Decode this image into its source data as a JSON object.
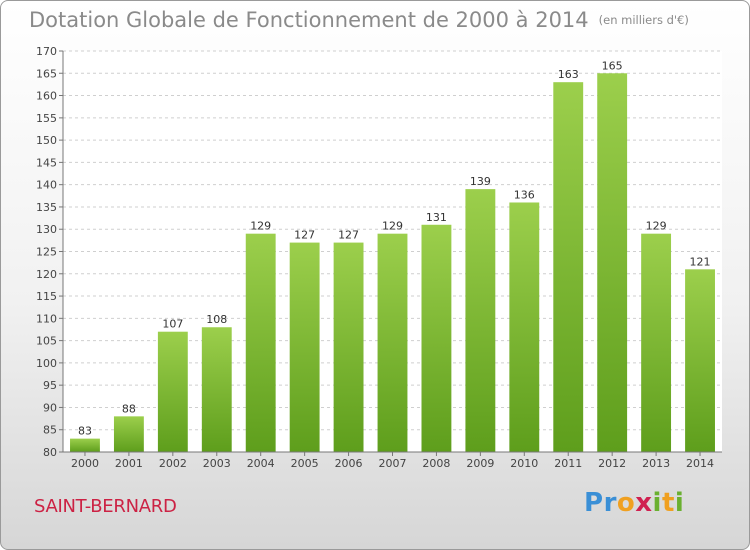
{
  "header": {
    "title": "Dotation Globale de Fonctionnement de 2000 à 2014",
    "subtitle": "(en milliers d'€)"
  },
  "footer": {
    "location": "SAINT-BERNARD",
    "logo_text": "Proxiti"
  },
  "colors": {
    "bar_top": "#9ccf4c",
    "bar_bottom": "#5e9e1c",
    "title": "#8a8a8a",
    "location": "#cc2244"
  },
  "chart_data": {
    "type": "bar",
    "title": "Dotation Globale de Fonctionnement de 2000 à 2014",
    "subtitle": "(en milliers d'€)",
    "xlabel": "",
    "ylabel": "",
    "categories": [
      "2000",
      "2001",
      "2002",
      "2003",
      "2004",
      "2005",
      "2006",
      "2007",
      "2008",
      "2009",
      "2010",
      "2011",
      "2012",
      "2013",
      "2014"
    ],
    "values": [
      83,
      88,
      107,
      108,
      129,
      127,
      127,
      129,
      131,
      139,
      136,
      163,
      165,
      129,
      121
    ],
    "ylim": [
      80,
      170
    ],
    "yticks": [
      80,
      85,
      90,
      95,
      100,
      105,
      110,
      115,
      120,
      125,
      130,
      135,
      140,
      145,
      150,
      155,
      160,
      165,
      170
    ],
    "grid": true,
    "legend": "none"
  }
}
